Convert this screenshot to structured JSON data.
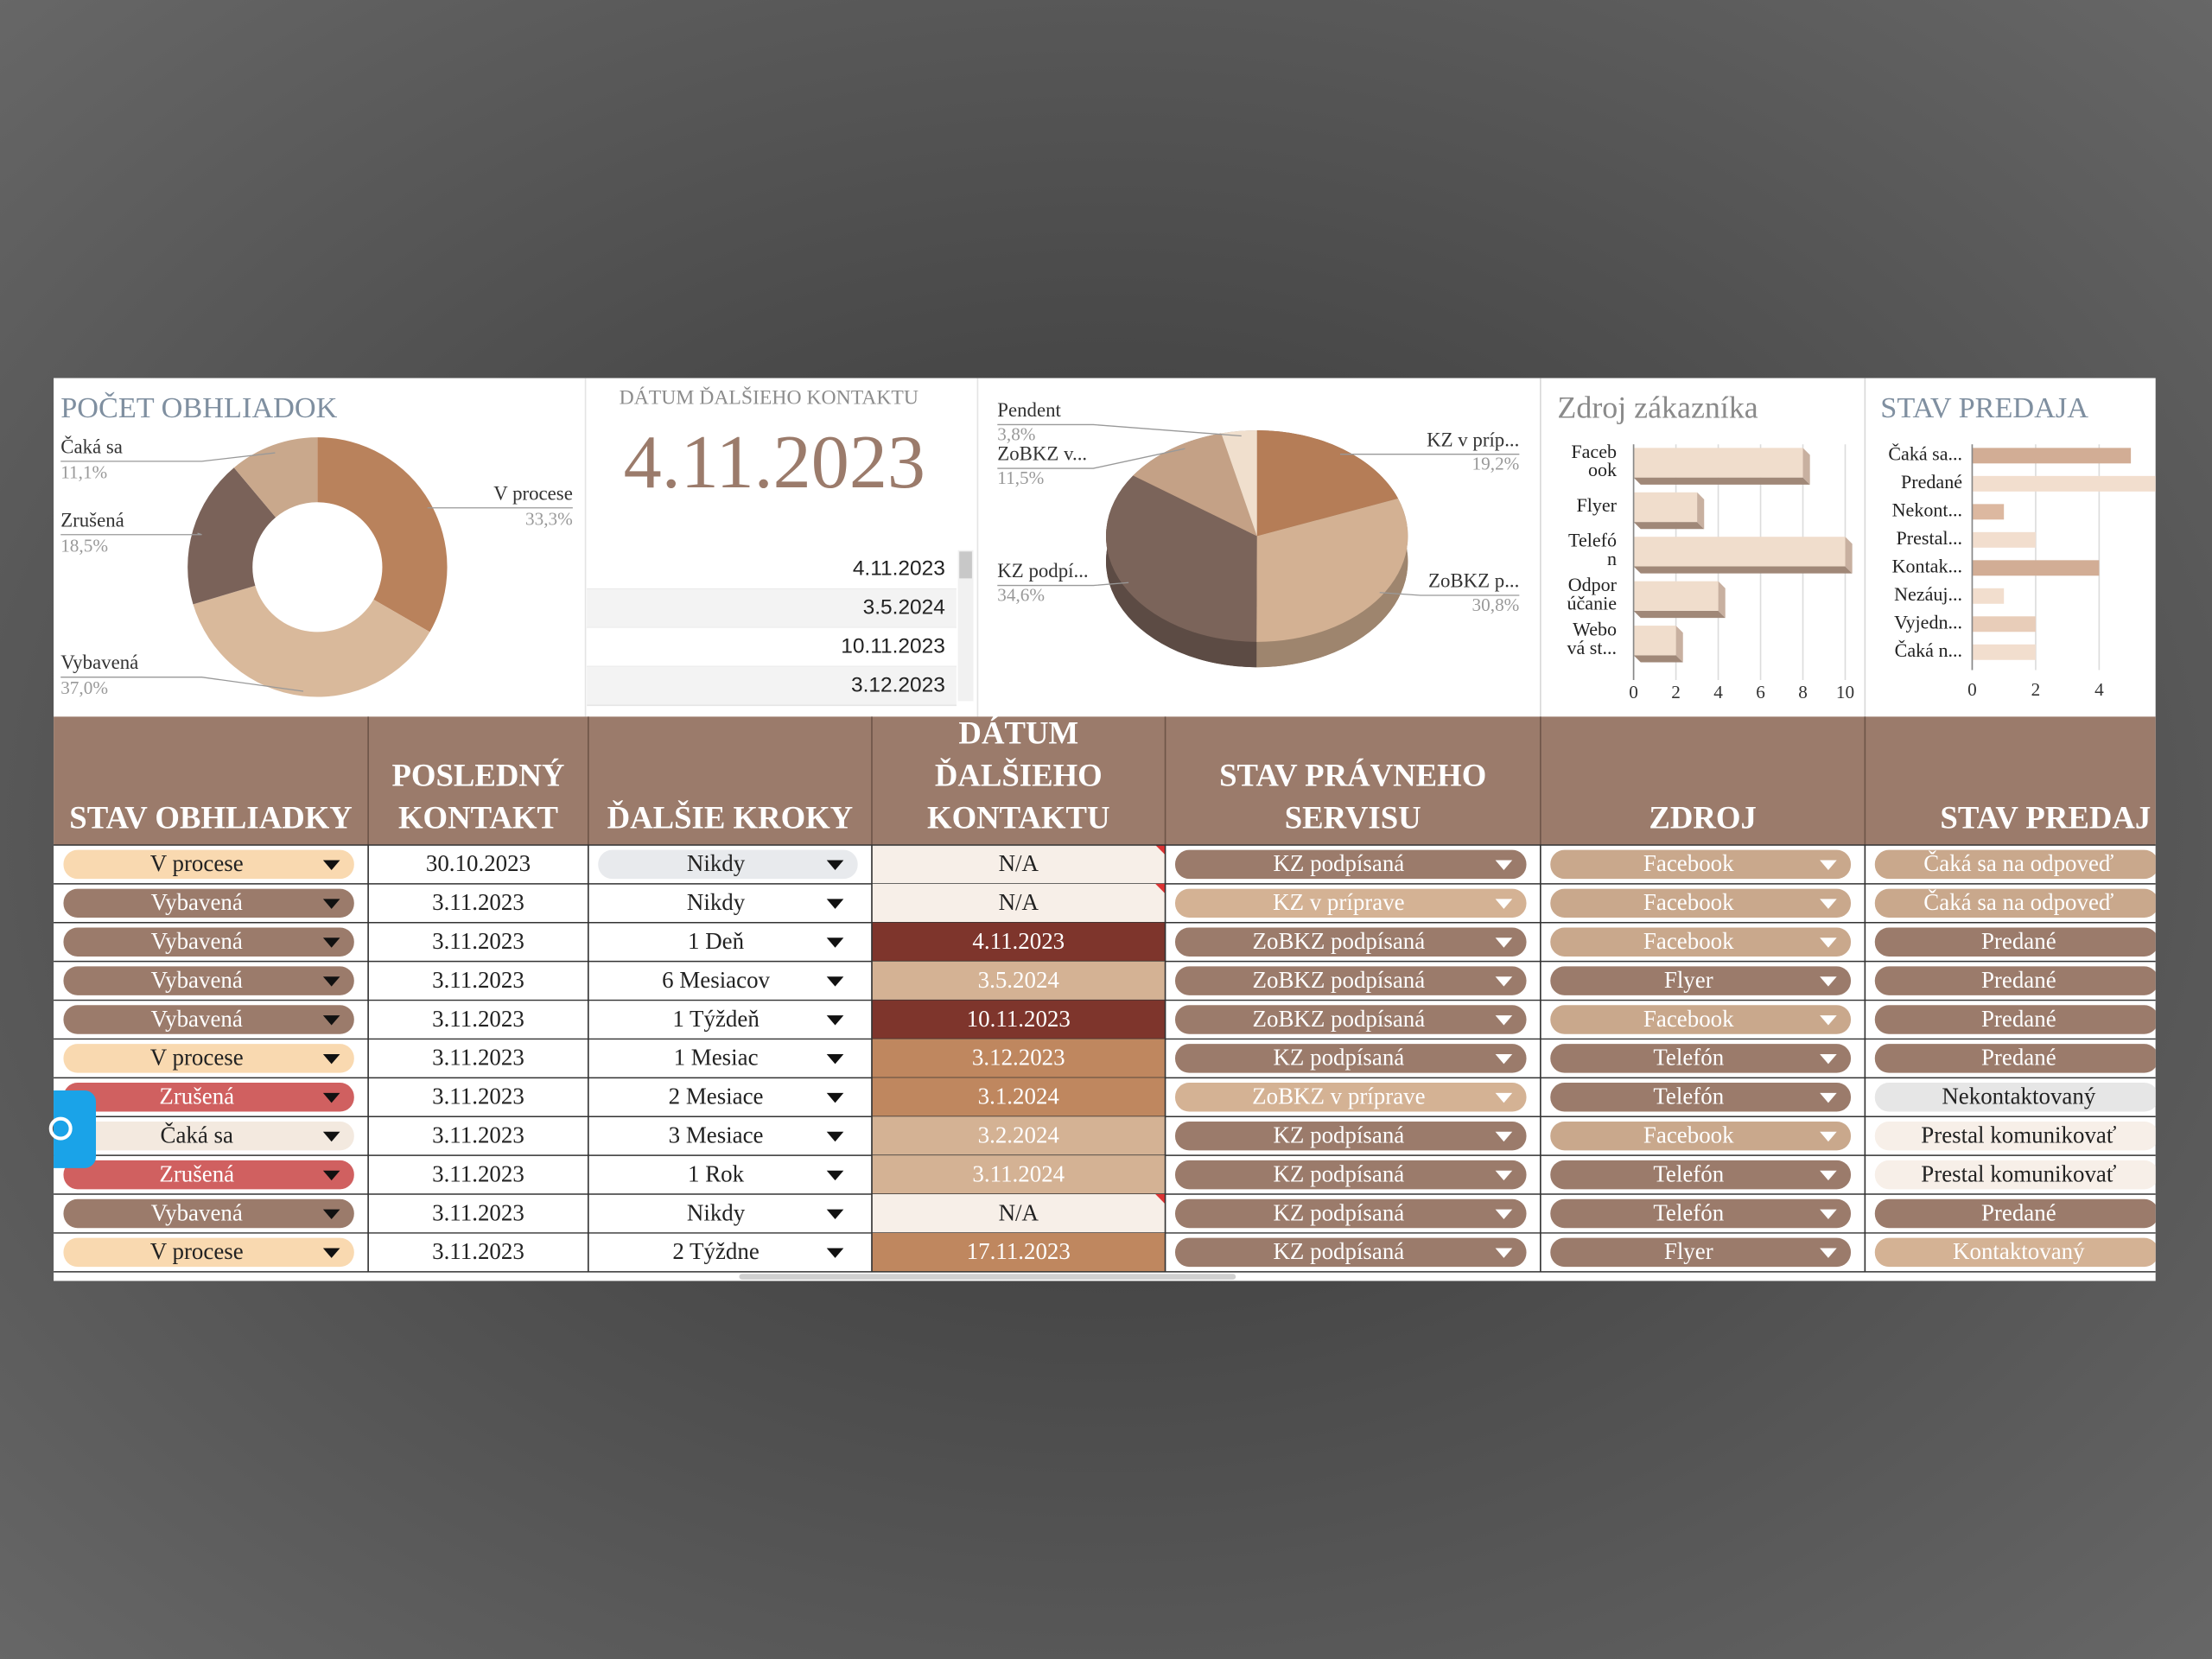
{
  "donut": {
    "type": "pie",
    "title": "POČET OBHLIADOK",
    "categories": [
      "V procese",
      "Vybavená",
      "Zrušená",
      "Čaká sa"
    ],
    "values": [
      33.3,
      37.0,
      18.5,
      11.1
    ],
    "value_labels": [
      "33,3%",
      "37,0%",
      "18,5%",
      "11,1%"
    ],
    "colors": [
      "#b9825c",
      "#d9b99b",
      "#7a6259",
      "#c9a88c"
    ]
  },
  "next_contact": {
    "title": "DÁTUM ĎALŠIEHO KONTAKTU",
    "date": "4.11.2023",
    "list": [
      "4.11.2023",
      "3.5.2024",
      "10.11.2023",
      "3.12.2023"
    ]
  },
  "pie3d": {
    "type": "pie",
    "categories": [
      "KZ v príp...",
      "ZoBKZ p...",
      "KZ podpí...",
      "ZoBKZ v...",
      "Pendent"
    ],
    "values": [
      19.2,
      30.8,
      34.6,
      11.5,
      3.8
    ],
    "value_labels": [
      "19,2%",
      "30,8%",
      "34,6%",
      "11,5%",
      "3,8%"
    ],
    "colors": [
      "#b57d57",
      "#d3b193",
      "#7b645a",
      "#c4a186",
      "#f0dfcd"
    ]
  },
  "source_chart": {
    "type": "bar",
    "title": "Zdroj zákazníka",
    "categories": [
      [
        "Faceb",
        "ook"
      ],
      [
        "Flyer"
      ],
      [
        "Telefó",
        "n"
      ],
      [
        "Odpor",
        "účanie"
      ],
      [
        "Webo",
        "vá st..."
      ]
    ],
    "values": [
      8,
      3,
      10,
      4,
      2
    ],
    "xlim": [
      0,
      10
    ],
    "xticks": [
      0,
      2,
      4,
      6,
      8,
      10
    ],
    "color": "#f0ddcc",
    "grid": true
  },
  "sales_chart": {
    "type": "bar",
    "title": "STAV PREDAJA",
    "categories": [
      "Čaká sa...",
      "Predané",
      "Nekont...",
      "Prestal...",
      "Kontak...",
      "Nezáuj...",
      "Vyjedn...",
      "Čaká n..."
    ],
    "values": [
      5,
      6,
      1,
      2,
      4,
      1,
      2,
      2
    ],
    "xlim": [
      0,
      6
    ],
    "xticks": [
      0,
      2,
      4
    ],
    "colors": [
      "#d2ad95",
      "#f2dece",
      "#dcb8a0",
      "#f2dece",
      "#d2ad95",
      "#f2dece",
      "#e8cdb9",
      "#f2dece"
    ],
    "grid": true
  },
  "table": {
    "headers": [
      [
        "STAV OBHLIADKY"
      ],
      [
        "POSLEDNÝ",
        "KONTAKT"
      ],
      [
        "ĎALŠIE KROKY"
      ],
      [
        "DÁTUM",
        "ĎALŠIEHO",
        "KONTAKTU"
      ],
      [
        "STAV PRÁVNEHO",
        "SERVISU"
      ],
      [
        "ZDROJ"
      ],
      [
        "STAV PREDAJ"
      ]
    ],
    "rows": [
      [
        {
          "text": "V procese",
          "fill": "#f9d9b0"
        },
        "30.10.2023",
        {
          "text": "Nikdy",
          "fill": "#e8eaed"
        },
        {
          "text": "N/A",
          "fill": "#f7efe8"
        },
        {
          "text": "KZ podpísaná",
          "fill": "#9b7b6b"
        },
        {
          "text": "Facebook",
          "fill": "#c9a88c"
        },
        {
          "text": "Čaká sa na odpoveď",
          "fill": "#c9a88c"
        }
      ],
      [
        {
          "text": "Vybavená",
          "fill": "#9b7b6b"
        },
        "3.11.2023",
        "Nikdy",
        {
          "text": "N/A",
          "fill": "#f7efe8"
        },
        {
          "text": "KZ v príprave",
          "fill": "#d4b294"
        },
        {
          "text": "Facebook",
          "fill": "#c9a88c"
        },
        {
          "text": "Čaká sa na odpoveď",
          "fill": "#c9a88c"
        }
      ],
      [
        {
          "text": "Vybavená",
          "fill": "#9b7b6b"
        },
        "3.11.2023",
        "1 Deň",
        {
          "text": "4.11.2023",
          "fill": "#7e352c"
        },
        {
          "text": "ZoBKZ podpísaná",
          "fill": "#9b7b6b"
        },
        {
          "text": "Facebook",
          "fill": "#c9a88c"
        },
        {
          "text": "Predané",
          "fill": "#9b7b6b"
        }
      ],
      [
        {
          "text": "Vybavená",
          "fill": "#9b7b6b"
        },
        "3.11.2023",
        "6 Mesiacov",
        {
          "text": "3.5.2024",
          "fill": "#d4b294"
        },
        {
          "text": "ZoBKZ podpísaná",
          "fill": "#9b7b6b"
        },
        {
          "text": "Flyer",
          "fill": "#9b7b6b"
        },
        {
          "text": "Predané",
          "fill": "#9b7b6b"
        }
      ],
      [
        {
          "text": "Vybavená",
          "fill": "#9b7b6b"
        },
        "3.11.2023",
        "1 Týždeň",
        {
          "text": "10.11.2023",
          "fill": "#7e352c"
        },
        {
          "text": "ZoBKZ podpísaná",
          "fill": "#9b7b6b"
        },
        {
          "text": "Facebook",
          "fill": "#c9a88c"
        },
        {
          "text": "Predané",
          "fill": "#9b7b6b"
        }
      ],
      [
        {
          "text": "V procese",
          "fill": "#f9d9b0"
        },
        "3.11.2023",
        "1 Mesiac",
        {
          "text": "3.12.2023",
          "fill": "#bf875f"
        },
        {
          "text": "KZ podpísaná",
          "fill": "#9b7b6b"
        },
        {
          "text": "Telefón",
          "fill": "#9b7b6b"
        },
        {
          "text": "Predané",
          "fill": "#9b7b6b"
        }
      ],
      [
        {
          "text": "Zrušená",
          "fill": "#d06060"
        },
        "3.11.2023",
        "2 Mesiace",
        {
          "text": "3.1.2024",
          "fill": "#bf875f"
        },
        {
          "text": "ZoBKZ v príprave",
          "fill": "#d4b294"
        },
        {
          "text": "Telefón",
          "fill": "#9b7b6b"
        },
        {
          "text": "Nekontaktovaný",
          "fill": "#e6e6e6"
        }
      ],
      [
        {
          "text": "Čaká sa",
          "fill": "#f3e9df"
        },
        "3.11.2023",
        "3 Mesiace",
        {
          "text": "3.2.2024",
          "fill": "#d4b294"
        },
        {
          "text": "KZ podpísaná",
          "fill": "#9b7b6b"
        },
        {
          "text": "Facebook",
          "fill": "#c9a88c"
        },
        {
          "text": "Prestal komunikovať",
          "fill": "#f7efe8"
        }
      ],
      [
        {
          "text": "Zrušená",
          "fill": "#d06060"
        },
        "3.11.2023",
        "1 Rok",
        {
          "text": "3.11.2024",
          "fill": "#d4b294"
        },
        {
          "text": "KZ podpísaná",
          "fill": "#9b7b6b"
        },
        {
          "text": "Telefón",
          "fill": "#9b7b6b"
        },
        {
          "text": "Prestal komunikovať",
          "fill": "#f7efe8"
        }
      ],
      [
        {
          "text": "Vybavená",
          "fill": "#9b7b6b"
        },
        "3.11.2023",
        "Nikdy",
        {
          "text": "N/A",
          "fill": "#f7efe8"
        },
        {
          "text": "KZ podpísaná",
          "fill": "#9b7b6b"
        },
        {
          "text": "Telefón",
          "fill": "#9b7b6b"
        },
        {
          "text": "Predané",
          "fill": "#9b7b6b"
        }
      ],
      [
        {
          "text": "V procese",
          "fill": "#f9d9b0"
        },
        "3.11.2023",
        "2 Týždne",
        {
          "text": "17.11.2023",
          "fill": "#bf875f"
        },
        {
          "text": "KZ podpísaná",
          "fill": "#9b7b6b"
        },
        {
          "text": "Flyer",
          "fill": "#9b7b6b"
        },
        {
          "text": "Kontaktovaný",
          "fill": "#d4b294"
        }
      ]
    ]
  }
}
